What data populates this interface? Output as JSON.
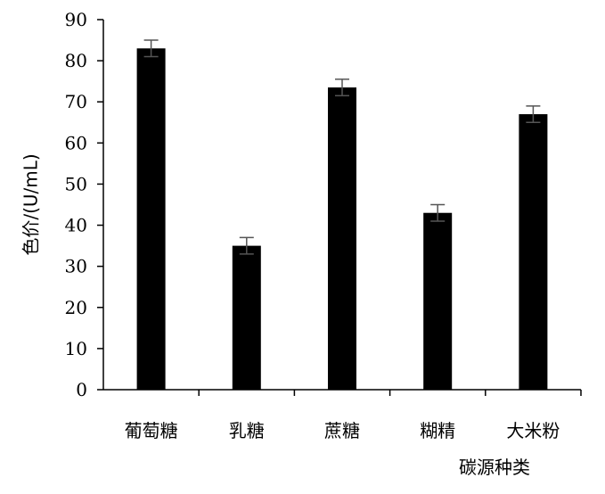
{
  "chart_data": {
    "type": "bar",
    "categories": [
      "葡萄糖",
      "乳糖",
      "蔗糖",
      "糊精",
      "大米粉"
    ],
    "values": [
      83,
      35,
      73.5,
      43,
      67
    ],
    "errors": [
      2,
      2,
      2,
      2,
      2
    ],
    "xlabel": "碳源种类",
    "ylabel": "色价/(U/mL)",
    "ylim": [
      0,
      90
    ],
    "yticks": [
      0,
      10,
      20,
      30,
      40,
      50,
      60,
      70,
      80,
      90
    ],
    "grid": false,
    "bar_color": "#000000"
  }
}
